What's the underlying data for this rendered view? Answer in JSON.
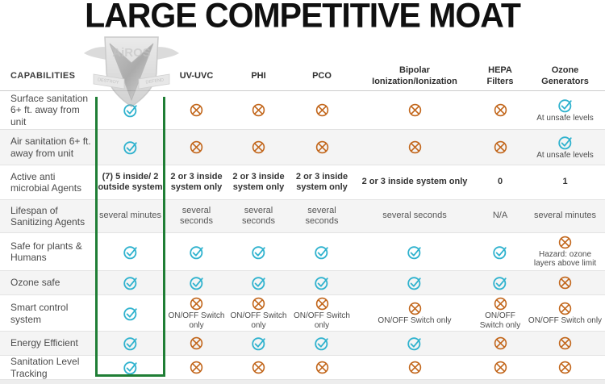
{
  "title": "LARGE COMPETITIVE MOAT",
  "logo": {
    "name": "AiROS",
    "ribbon_left": "DESTROY",
    "ribbon_right": "DEFEND"
  },
  "colors": {
    "check_teal": "#2fb2ce",
    "cross_orange": "#c2661b",
    "highlight_green": "#1f7e35",
    "row_stripe": "#f4f4f4"
  },
  "table": {
    "columns": [
      {
        "key": "capabilities",
        "label": "CAPABILITIES"
      },
      {
        "key": "brand",
        "label": ""
      },
      {
        "key": "uvuvc",
        "label": "UV-UVC"
      },
      {
        "key": "phi",
        "label": "PHI"
      },
      {
        "key": "pco",
        "label": "PCO"
      },
      {
        "key": "bipolar",
        "label": "Bipolar Ionization/Ionization"
      },
      {
        "key": "hepa",
        "label": "HEPA Filters"
      },
      {
        "key": "ozone",
        "label": "Ozone Generators"
      }
    ],
    "rows": [
      {
        "label": "Surface sanitation 6+ ft. away from unit",
        "cells": {
          "brand": {
            "icon": "check"
          },
          "uvuvc": {
            "icon": "cross"
          },
          "phi": {
            "icon": "cross"
          },
          "pco": {
            "icon": "cross"
          },
          "bipolar": {
            "icon": "cross"
          },
          "hepa": {
            "icon": "cross"
          },
          "ozone": {
            "icon": "check",
            "note": "At unsafe levels"
          }
        }
      },
      {
        "label": "Air sanitation 6+ ft. away from unit",
        "cells": {
          "brand": {
            "icon": "check"
          },
          "uvuvc": {
            "icon": "cross"
          },
          "phi": {
            "icon": "cross"
          },
          "pco": {
            "icon": "cross"
          },
          "bipolar": {
            "icon": "cross"
          },
          "hepa": {
            "icon": "cross"
          },
          "ozone": {
            "icon": "check",
            "note": "At unsafe levels"
          }
        }
      },
      {
        "label": "Active anti microbial Agents",
        "cells": {
          "brand": {
            "text": "(7) 5 inside/ 2 outside system",
            "bold": true
          },
          "uvuvc": {
            "text": "2 or 3 inside system only",
            "bold": true
          },
          "phi": {
            "text": "2 or 3 inside system only",
            "bold": true
          },
          "pco": {
            "text": "2 or 3 inside system only",
            "bold": true
          },
          "bipolar": {
            "text": "2 or 3 inside system only",
            "bold": true
          },
          "hepa": {
            "text": "0",
            "bold": true
          },
          "ozone": {
            "text": "1",
            "bold": true
          }
        }
      },
      {
        "label": "Lifespan of Sanitizing Agents",
        "cells": {
          "brand": {
            "text": "several minutes"
          },
          "uvuvc": {
            "text": "several seconds"
          },
          "phi": {
            "text": "several seconds"
          },
          "pco": {
            "text": "several seconds"
          },
          "bipolar": {
            "text": "several seconds"
          },
          "hepa": {
            "text": "N/A"
          },
          "ozone": {
            "text": "several minutes"
          }
        }
      },
      {
        "label": "Safe for plants & Humans",
        "cells": {
          "brand": {
            "icon": "check"
          },
          "uvuvc": {
            "icon": "check"
          },
          "phi": {
            "icon": "check"
          },
          "pco": {
            "icon": "check"
          },
          "bipolar": {
            "icon": "check"
          },
          "hepa": {
            "icon": "check"
          },
          "ozone": {
            "icon": "cross",
            "note": "Hazard: ozone layers above limit"
          }
        }
      },
      {
        "label": "Ozone safe",
        "cells": {
          "brand": {
            "icon": "check"
          },
          "uvuvc": {
            "icon": "check"
          },
          "phi": {
            "icon": "check"
          },
          "pco": {
            "icon": "check"
          },
          "bipolar": {
            "icon": "check"
          },
          "hepa": {
            "icon": "check"
          },
          "ozone": {
            "icon": "cross"
          }
        }
      },
      {
        "label": "Smart control system",
        "cells": {
          "brand": {
            "icon": "check"
          },
          "uvuvc": {
            "icon": "cross",
            "note": "ON/OFF Switch only"
          },
          "phi": {
            "icon": "cross",
            "note": "ON/OFF Switch only"
          },
          "pco": {
            "icon": "cross",
            "note": "ON/OFF Switch only"
          },
          "bipolar": {
            "icon": "cross",
            "note": "ON/OFF Switch only"
          },
          "hepa": {
            "icon": "cross",
            "note": "ON/OFF Switch only"
          },
          "ozone": {
            "icon": "cross",
            "note": "ON/OFF Switch only"
          }
        }
      },
      {
        "label": "Energy Efficient",
        "cells": {
          "brand": {
            "icon": "check"
          },
          "uvuvc": {
            "icon": "cross"
          },
          "phi": {
            "icon": "check"
          },
          "pco": {
            "icon": "check"
          },
          "bipolar": {
            "icon": "check"
          },
          "hepa": {
            "icon": "cross"
          },
          "ozone": {
            "icon": "cross"
          }
        }
      },
      {
        "label": "Sanitation Level Tracking",
        "cells": {
          "brand": {
            "icon": "check"
          },
          "uvuvc": {
            "icon": "cross"
          },
          "phi": {
            "icon": "cross"
          },
          "pco": {
            "icon": "cross"
          },
          "bipolar": {
            "icon": "cross"
          },
          "hepa": {
            "icon": "cross"
          },
          "ozone": {
            "icon": "cross"
          }
        }
      }
    ]
  }
}
